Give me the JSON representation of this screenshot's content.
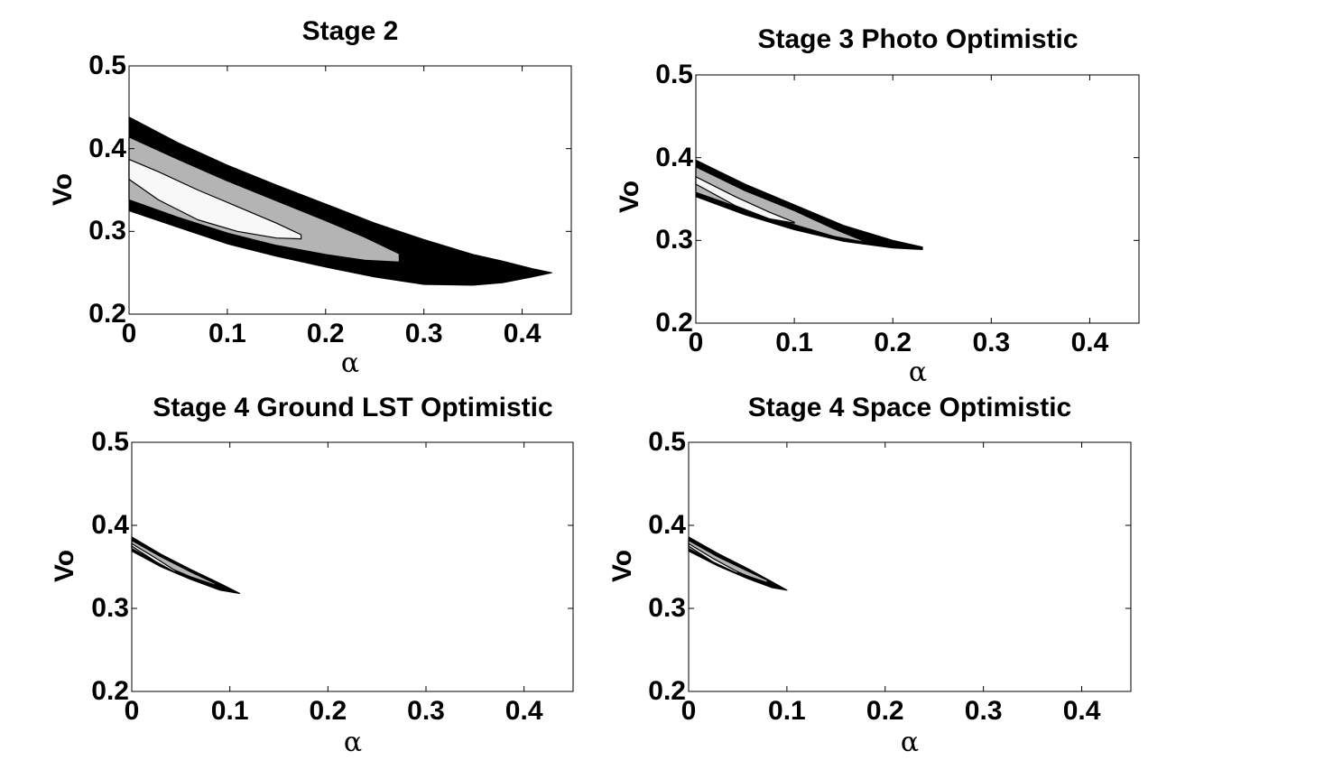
{
  "colors": {
    "level1": "#000000",
    "level2": "#b4b4b4",
    "level3": "#f8f8f8",
    "background": "#ffffff",
    "axis": "#000000"
  },
  "chart_data": [
    {
      "type": "contour",
      "title": "Stage 2",
      "xlabel": "α",
      "ylabel": "Vo",
      "xlim": [
        0,
        0.45
      ],
      "ylim": [
        0.2,
        0.5
      ],
      "xticks": [
        "0",
        "0.1",
        "0.2",
        "0.3",
        "0.4"
      ],
      "yticks": [
        "0.2",
        "0.3",
        "0.4",
        "0.5"
      ],
      "regions": [
        {
          "level": "outer",
          "upper": [
            [
              0,
              0.438
            ],
            [
              0.05,
              0.407
            ],
            [
              0.1,
              0.38
            ],
            [
              0.15,
              0.356
            ],
            [
              0.2,
              0.333
            ],
            [
              0.25,
              0.31
            ],
            [
              0.3,
              0.29
            ],
            [
              0.35,
              0.272
            ],
            [
              0.38,
              0.264
            ],
            [
              0.41,
              0.255
            ],
            [
              0.43,
              0.25
            ]
          ],
          "lower": [
            [
              0,
              0.325
            ],
            [
              0.05,
              0.305
            ],
            [
              0.1,
              0.285
            ],
            [
              0.15,
              0.27
            ],
            [
              0.2,
              0.257
            ],
            [
              0.25,
              0.245
            ],
            [
              0.3,
              0.236
            ],
            [
              0.35,
              0.235
            ],
            [
              0.38,
              0.238
            ],
            [
              0.41,
              0.245
            ],
            [
              0.43,
              0.25
            ]
          ]
        },
        {
          "level": "middle",
          "upper": [
            [
              0,
              0.414
            ],
            [
              0.05,
              0.387
            ],
            [
              0.1,
              0.361
            ],
            [
              0.15,
              0.337
            ],
            [
              0.2,
              0.313
            ],
            [
              0.24,
              0.293
            ],
            [
              0.275,
              0.273
            ]
          ],
          "lower": [
            [
              0,
              0.338
            ],
            [
              0.05,
              0.317
            ],
            [
              0.1,
              0.298
            ],
            [
              0.15,
              0.283
            ],
            [
              0.2,
              0.272
            ],
            [
              0.24,
              0.265
            ],
            [
              0.275,
              0.263
            ],
            [
              0.275,
              0.273
            ]
          ]
        },
        {
          "level": "inner",
          "upper": [
            [
              0,
              0.387
            ],
            [
              0.03,
              0.372
            ],
            [
              0.07,
              0.35
            ],
            [
              0.11,
              0.33
            ],
            [
              0.15,
              0.31
            ],
            [
              0.175,
              0.296
            ]
          ],
          "lower": [
            [
              0,
              0.363
            ],
            [
              0.03,
              0.338
            ],
            [
              0.07,
              0.314
            ],
            [
              0.11,
              0.3
            ],
            [
              0.15,
              0.292
            ],
            [
              0.175,
              0.291
            ],
            [
              0.175,
              0.296
            ]
          ]
        }
      ]
    },
    {
      "type": "contour",
      "title": "Stage 3 Photo Optimistic",
      "xlabel": "α",
      "ylabel": "Vo",
      "xlim": [
        0,
        0.45
      ],
      "ylim": [
        0.2,
        0.5
      ],
      "xticks": [
        "0",
        "0.1",
        "0.2",
        "0.3",
        "0.4"
      ],
      "yticks": [
        "0.2",
        "0.3",
        "0.4",
        "0.5"
      ],
      "regions": [
        {
          "level": "outer",
          "upper": [
            [
              0,
              0.397
            ],
            [
              0.05,
              0.368
            ],
            [
              0.1,
              0.343
            ],
            [
              0.15,
              0.318
            ],
            [
              0.2,
              0.3
            ],
            [
              0.23,
              0.292
            ]
          ],
          "lower": [
            [
              0,
              0.353
            ],
            [
              0.05,
              0.331
            ],
            [
              0.1,
              0.313
            ],
            [
              0.15,
              0.299
            ],
            [
              0.2,
              0.291
            ],
            [
              0.23,
              0.289
            ]
          ]
        },
        {
          "level": "middle",
          "upper": [
            [
              0,
              0.389
            ],
            [
              0.05,
              0.36
            ],
            [
              0.1,
              0.336
            ],
            [
              0.14,
              0.314
            ],
            [
              0.175,
              0.297
            ]
          ],
          "lower": [
            [
              0,
              0.358
            ],
            [
              0.05,
              0.337
            ],
            [
              0.1,
              0.319
            ],
            [
              0.14,
              0.305
            ],
            [
              0.175,
              0.297
            ]
          ]
        },
        {
          "level": "inner",
          "upper": [
            [
              0,
              0.377
            ],
            [
              0.04,
              0.353
            ],
            [
              0.075,
              0.334
            ],
            [
              0.1,
              0.322
            ]
          ],
          "lower": [
            [
              0,
              0.368
            ],
            [
              0.04,
              0.342
            ],
            [
              0.075,
              0.326
            ],
            [
              0.1,
              0.321
            ]
          ]
        }
      ]
    },
    {
      "type": "contour",
      "title": "Stage 4 Ground LST Optimistic",
      "xlabel": "α",
      "ylabel": "Vo",
      "xlim": [
        0,
        0.45
      ],
      "ylim": [
        0.2,
        0.5
      ],
      "xticks": [
        "0",
        "0.1",
        "0.2",
        "0.3",
        "0.4"
      ],
      "yticks": [
        "0.2",
        "0.3",
        "0.4",
        "0.5"
      ],
      "regions": [
        {
          "level": "outer",
          "upper": [
            [
              0,
              0.386
            ],
            [
              0.03,
              0.365
            ],
            [
              0.06,
              0.347
            ],
            [
              0.09,
              0.33
            ],
            [
              0.11,
              0.318
            ]
          ],
          "lower": [
            [
              0,
              0.369
            ],
            [
              0.03,
              0.35
            ],
            [
              0.06,
              0.335
            ],
            [
              0.09,
              0.322
            ],
            [
              0.11,
              0.318
            ]
          ]
        },
        {
          "level": "middle",
          "upper": [
            [
              0,
              0.382
            ],
            [
              0.03,
              0.362
            ],
            [
              0.06,
              0.344
            ],
            [
              0.085,
              0.33
            ]
          ],
          "lower": [
            [
              0,
              0.372
            ],
            [
              0.03,
              0.353
            ],
            [
              0.06,
              0.338
            ],
            [
              0.085,
              0.328
            ]
          ]
        },
        {
          "level": "inner",
          "upper": [
            [
              0,
              0.378
            ],
            [
              0.025,
              0.36
            ],
            [
              0.045,
              0.345
            ]
          ],
          "lower": [
            [
              0,
              0.375
            ],
            [
              0.025,
              0.356
            ],
            [
              0.045,
              0.343
            ]
          ]
        }
      ]
    },
    {
      "type": "contour",
      "title": "Stage 4 Space Optimistic",
      "xlabel": "α",
      "ylabel": "Vo",
      "xlim": [
        0,
        0.45
      ],
      "ylim": [
        0.2,
        0.5
      ],
      "xticks": [
        "0",
        "0.1",
        "0.2",
        "0.3",
        "0.4"
      ],
      "yticks": [
        "0.2",
        "0.3",
        "0.4",
        "0.5"
      ],
      "regions": [
        {
          "level": "outer",
          "upper": [
            [
              0,
              0.386
            ],
            [
              0.03,
              0.366
            ],
            [
              0.06,
              0.348
            ],
            [
              0.085,
              0.332
            ],
            [
              0.1,
              0.322
            ]
          ],
          "lower": [
            [
              0,
              0.369
            ],
            [
              0.03,
              0.351
            ],
            [
              0.06,
              0.336
            ],
            [
              0.085,
              0.325
            ],
            [
              0.1,
              0.322
            ]
          ]
        },
        {
          "level": "middle",
          "upper": [
            [
              0,
              0.382
            ],
            [
              0.03,
              0.362
            ],
            [
              0.06,
              0.345
            ],
            [
              0.08,
              0.334
            ]
          ],
          "lower": [
            [
              0,
              0.372
            ],
            [
              0.03,
              0.354
            ],
            [
              0.06,
              0.339
            ],
            [
              0.08,
              0.331
            ]
          ]
        },
        {
          "level": "inner",
          "upper": [
            [
              0,
              0.378
            ],
            [
              0.025,
              0.36
            ],
            [
              0.05,
              0.344
            ]
          ],
          "lower": [
            [
              0,
              0.375
            ],
            [
              0.025,
              0.356
            ],
            [
              0.05,
              0.342
            ]
          ]
        }
      ]
    }
  ]
}
